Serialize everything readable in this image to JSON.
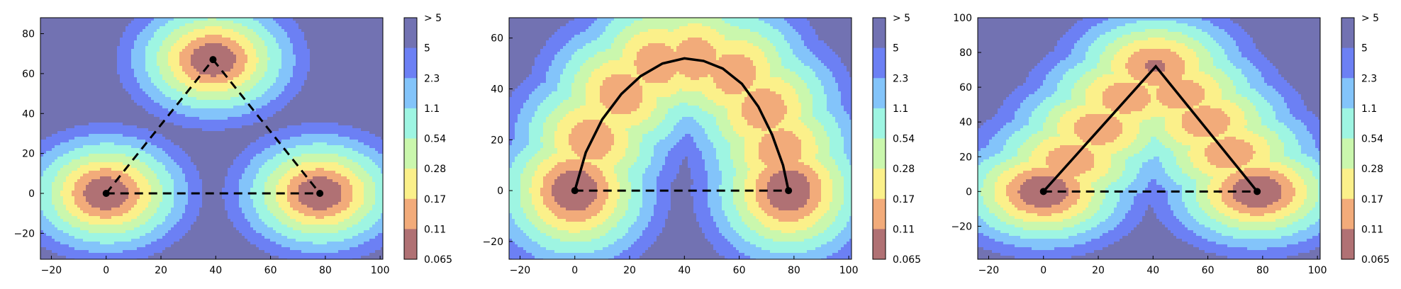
{
  "chart_data": [
    {
      "type": "contour",
      "xlim": [
        -24,
        101
      ],
      "ylim": [
        -33,
        88
      ],
      "xticks": [
        -20,
        0,
        20,
        40,
        60,
        80,
        100
      ],
      "xtick_labels": [
        "−20",
        "0",
        "20",
        "40",
        "60",
        "80",
        "100"
      ],
      "yticks": [
        -20,
        0,
        20,
        40,
        60,
        80
      ],
      "ytick_labels": [
        "−20",
        "0",
        "20",
        "40",
        "60",
        "80"
      ],
      "sources": [
        {
          "x": 0,
          "y": 0,
          "amp": 1.0,
          "sigma": 9
        },
        {
          "x": 78,
          "y": 0,
          "amp": 1.0,
          "sigma": 9
        },
        {
          "x": 39,
          "y": 67,
          "amp": 1.0,
          "sigma": 9
        }
      ],
      "points": [
        {
          "x": 0,
          "y": 0
        },
        {
          "x": 78,
          "y": 0
        },
        {
          "x": 39,
          "y": 67
        }
      ],
      "paths": [
        {
          "style": "dashed",
          "points": [
            [
              0,
              0
            ],
            [
              78,
              0
            ]
          ]
        },
        {
          "style": "dashed",
          "points": [
            [
              0,
              0
            ],
            [
              39,
              67
            ]
          ]
        },
        {
          "style": "dashed",
          "points": [
            [
              39,
              67
            ],
            [
              78,
              0
            ]
          ]
        }
      ]
    },
    {
      "type": "contour",
      "xlim": [
        -24,
        101
      ],
      "ylim": [
        -27,
        68
      ],
      "xticks": [
        -20,
        0,
        20,
        40,
        60,
        80,
        100
      ],
      "xtick_labels": [
        "−20",
        "0",
        "20",
        "40",
        "60",
        "80",
        "100"
      ],
      "yticks": [
        -20,
        0,
        20,
        40,
        60
      ],
      "ytick_labels": [
        "−20",
        "0",
        "20",
        "40",
        "60"
      ],
      "sources": [
        {
          "x": 0,
          "y": 0,
          "amp": 1.0,
          "sigma": 9
        },
        {
          "x": 78,
          "y": 0,
          "amp": 1.0,
          "sigma": 9
        },
        {
          "x": 6,
          "y": 20,
          "amp": 0.85,
          "sigma": 9
        },
        {
          "x": 17,
          "y": 38,
          "amp": 0.85,
          "sigma": 9
        },
        {
          "x": 30,
          "y": 50,
          "amp": 0.85,
          "sigma": 9
        },
        {
          "x": 44,
          "y": 52,
          "amp": 0.85,
          "sigma": 9
        },
        {
          "x": 58,
          "y": 46,
          "amp": 0.85,
          "sigma": 9
        },
        {
          "x": 69,
          "y": 32,
          "amp": 0.85,
          "sigma": 9
        },
        {
          "x": 75,
          "y": 16,
          "amp": 0.85,
          "sigma": 9
        }
      ],
      "points": [
        {
          "x": 0,
          "y": 0
        },
        {
          "x": 78,
          "y": 0
        }
      ],
      "paths": [
        {
          "style": "dashed",
          "points": [
            [
              0,
              0
            ],
            [
              78,
              0
            ]
          ]
        },
        {
          "style": "solid",
          "points": [
            [
              0,
              0
            ],
            [
              4,
              15
            ],
            [
              10,
              28
            ],
            [
              17,
              38
            ],
            [
              24,
              45
            ],
            [
              32,
              50
            ],
            [
              40,
              52
            ],
            [
              47,
              51
            ],
            [
              54,
              48
            ],
            [
              61,
              42
            ],
            [
              67,
              33
            ],
            [
              72,
              22
            ],
            [
              76,
              10
            ],
            [
              78,
              0
            ]
          ]
        }
      ]
    },
    {
      "type": "contour",
      "xlim": [
        -24,
        101
      ],
      "ylim": [
        -39,
        100
      ],
      "xticks": [
        -20,
        0,
        20,
        40,
        60,
        80,
        100
      ],
      "xtick_labels": [
        "−20",
        "0",
        "20",
        "40",
        "60",
        "80",
        "100"
      ],
      "yticks": [
        -20,
        0,
        20,
        40,
        60,
        80,
        100
      ],
      "ytick_labels": [
        "−20",
        "0",
        "20",
        "40",
        "60",
        "80",
        "100"
      ],
      "sources": [
        {
          "x": 0,
          "y": 0,
          "amp": 1.0,
          "sigma": 10
        },
        {
          "x": 78,
          "y": 0,
          "amp": 1.0,
          "sigma": 10
        },
        {
          "x": 10,
          "y": 18,
          "amp": 0.85,
          "sigma": 10
        },
        {
          "x": 20,
          "y": 36,
          "amp": 0.85,
          "sigma": 10
        },
        {
          "x": 30,
          "y": 54,
          "amp": 0.85,
          "sigma": 10
        },
        {
          "x": 41,
          "y": 72,
          "amp": 0.9,
          "sigma": 10
        },
        {
          "x": 50,
          "y": 56,
          "amp": 0.85,
          "sigma": 10
        },
        {
          "x": 59,
          "y": 40,
          "amp": 0.85,
          "sigma": 10
        },
        {
          "x": 68,
          "y": 22,
          "amp": 0.85,
          "sigma": 10
        }
      ],
      "points": [
        {
          "x": 0,
          "y": 0
        },
        {
          "x": 78,
          "y": 0
        }
      ],
      "paths": [
        {
          "style": "dashed",
          "points": [
            [
              0,
              0
            ],
            [
              78,
              0
            ]
          ]
        },
        {
          "style": "solid",
          "points": [
            [
              0,
              0
            ],
            [
              41,
              72
            ],
            [
              78,
              0
            ]
          ]
        }
      ]
    }
  ],
  "colorbar": {
    "labels": [
      "> 5",
      "5",
      "2.3",
      "1.1",
      "0.54",
      "0.28",
      "0.17",
      "0.11",
      "0.065"
    ],
    "colors": [
      "#7272b2",
      "#6c80f4",
      "#83c4fa",
      "#9ef5e2",
      "#caf7ad",
      "#fbf08a",
      "#f2ab7a",
      "#b07174"
    ],
    "line_color_red": "#ee3a22",
    "line_color_blue": "#1f3ae0"
  }
}
